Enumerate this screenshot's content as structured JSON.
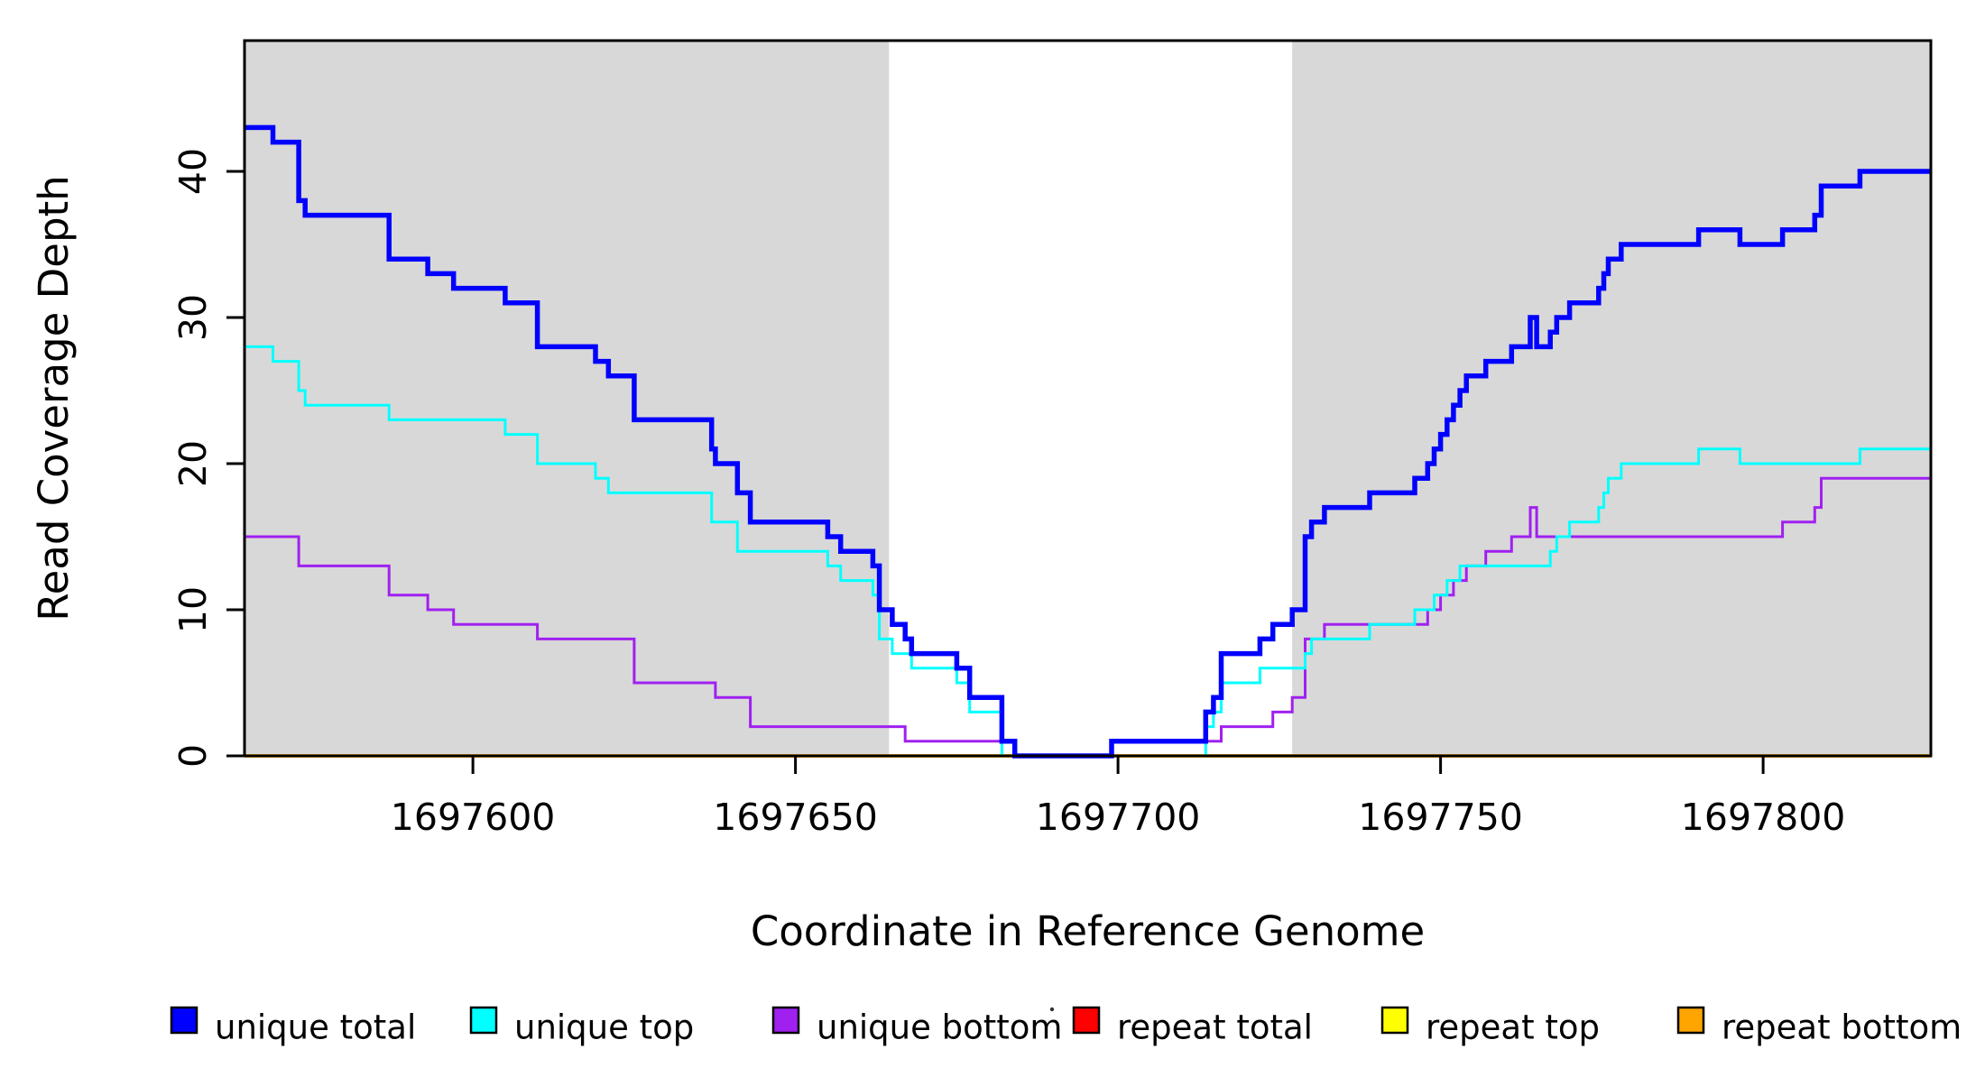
{
  "chart_data": {
    "type": "line",
    "subtype": "step",
    "title": "",
    "xlabel": "Coordinate in Reference Genome",
    "ylabel": "Read Coverage Depth",
    "xlim": [
      1697564.6,
      1697826.0
    ],
    "ylim": [
      0,
      48.9
    ],
    "x_ticks": [
      1697600,
      1697650,
      1697700,
      1697750,
      1697800
    ],
    "y_ticks": [
      0,
      10,
      20,
      30,
      40
    ],
    "grid": false,
    "legend_position": "bottom",
    "plot_bg": "#ffffff",
    "shaded_regions": [
      {
        "name": "unique-region-left",
        "x0": 1697564.6,
        "x1": 1697664.5,
        "color": "#d8d8d8"
      },
      {
        "name": "unique-region-right",
        "x0": 1697727.0,
        "x1": 1697826.0,
        "color": "#d8d8d8"
      }
    ],
    "series": [
      {
        "name": "repeat total",
        "color": "#FF0000",
        "points": [
          [
            1697564.6,
            0
          ]
        ]
      },
      {
        "name": "repeat top",
        "color": "#FFFF00",
        "points": [
          [
            1697564.6,
            0
          ]
        ]
      },
      {
        "name": "repeat bottom",
        "color": "#FFA500",
        "points": [
          [
            1697564.6,
            0
          ]
        ]
      },
      {
        "name": "unique bottom",
        "color": "#A020F0",
        "points": [
          [
            1697564.6,
            15
          ],
          [
            1697573,
            13
          ],
          [
            1697587,
            11
          ],
          [
            1697593,
            10
          ],
          [
            1697597,
            9
          ],
          [
            1697610,
            8
          ],
          [
            1697625,
            5
          ],
          [
            1697637.6,
            4
          ],
          [
            1697643,
            2
          ],
          [
            1697667,
            1
          ],
          [
            1697684,
            0
          ],
          [
            1697699,
            1
          ],
          [
            1697716,
            2
          ],
          [
            1697724,
            3
          ],
          [
            1697727,
            4
          ],
          [
            1697729,
            8
          ],
          [
            1697732,
            9
          ],
          [
            1697748,
            10
          ],
          [
            1697750,
            11
          ],
          [
            1697752,
            12
          ],
          [
            1697754,
            13
          ],
          [
            1697757,
            14
          ],
          [
            1697761,
            15
          ],
          [
            1697763.9,
            17
          ],
          [
            1697764.9,
            15
          ],
          [
            1697803,
            16
          ],
          [
            1697808,
            17
          ],
          [
            1697809,
            19
          ]
        ]
      },
      {
        "name": "unique top",
        "color": "#00FFFF",
        "points": [
          [
            1697564.6,
            28
          ],
          [
            1697569,
            27
          ],
          [
            1697573,
            25
          ],
          [
            1697574,
            24
          ],
          [
            1697587,
            23
          ],
          [
            1697605,
            22
          ],
          [
            1697610,
            20
          ],
          [
            1697619,
            19
          ],
          [
            1697621,
            18
          ],
          [
            1697637,
            16
          ],
          [
            1697641,
            14
          ],
          [
            1697655,
            13
          ],
          [
            1697657,
            12
          ],
          [
            1697662,
            11
          ],
          [
            1697663,
            8
          ],
          [
            1697665,
            7
          ],
          [
            1697668,
            6
          ],
          [
            1697675,
            5
          ],
          [
            1697677,
            3
          ],
          [
            1697682,
            0
          ],
          [
            1697713.6,
            2
          ],
          [
            1697714.8,
            3
          ],
          [
            1697716,
            5
          ],
          [
            1697722,
            6
          ],
          [
            1697729,
            7
          ],
          [
            1697730,
            8
          ],
          [
            1697739,
            9
          ],
          [
            1697746,
            10
          ],
          [
            1697749,
            11
          ],
          [
            1697751,
            12
          ],
          [
            1697753,
            13
          ],
          [
            1697767,
            14
          ],
          [
            1697768,
            15
          ],
          [
            1697770,
            16
          ],
          [
            1697774.5,
            17
          ],
          [
            1697775.3,
            18
          ],
          [
            1697776,
            19
          ],
          [
            1697778,
            20
          ],
          [
            1697790,
            21
          ],
          [
            1697796.4,
            20
          ],
          [
            1697815,
            21
          ]
        ]
      },
      {
        "name": "unique total",
        "color": "#0000FF",
        "points": [
          [
            1697564.6,
            43
          ],
          [
            1697569,
            42
          ],
          [
            1697573,
            38
          ],
          [
            1697574,
            37
          ],
          [
            1697587,
            34
          ],
          [
            1697593,
            33
          ],
          [
            1697597,
            32
          ],
          [
            1697605,
            31
          ],
          [
            1697610,
            28
          ],
          [
            1697619,
            27
          ],
          [
            1697621,
            26
          ],
          [
            1697625,
            23
          ],
          [
            1697637,
            21
          ],
          [
            1697637.6,
            20
          ],
          [
            1697641,
            18
          ],
          [
            1697643,
            16
          ],
          [
            1697655,
            15
          ],
          [
            1697657,
            14
          ],
          [
            1697662,
            13
          ],
          [
            1697663,
            10
          ],
          [
            1697665,
            9
          ],
          [
            1697667,
            8
          ],
          [
            1697668,
            7
          ],
          [
            1697675,
            6
          ],
          [
            1697677,
            4
          ],
          [
            1697682,
            1
          ],
          [
            1697684,
            0
          ],
          [
            1697699,
            1
          ],
          [
            1697713.6,
            3
          ],
          [
            1697714.8,
            4
          ],
          [
            1697716,
            7
          ],
          [
            1697722,
            8
          ],
          [
            1697724,
            9
          ],
          [
            1697727,
            10
          ],
          [
            1697729,
            15
          ],
          [
            1697730,
            16
          ],
          [
            1697732,
            17
          ],
          [
            1697739,
            18
          ],
          [
            1697746,
            19
          ],
          [
            1697748,
            20
          ],
          [
            1697749,
            21
          ],
          [
            1697750,
            22
          ],
          [
            1697751,
            23
          ],
          [
            1697752,
            24
          ],
          [
            1697753,
            25
          ],
          [
            1697754,
            26
          ],
          [
            1697757,
            27
          ],
          [
            1697761,
            28
          ],
          [
            1697763.9,
            30
          ],
          [
            1697764.9,
            28
          ],
          [
            1697767,
            29
          ],
          [
            1697768,
            30
          ],
          [
            1697770,
            31
          ],
          [
            1697774.5,
            32
          ],
          [
            1697775.3,
            33
          ],
          [
            1697776,
            34
          ],
          [
            1697778,
            35
          ],
          [
            1697790,
            36
          ],
          [
            1697796.4,
            35
          ],
          [
            1697803,
            36
          ],
          [
            1697808,
            37
          ],
          [
            1697809,
            39
          ],
          [
            1697815,
            40
          ]
        ]
      }
    ],
    "legend": [
      {
        "label": "unique total",
        "color": "#0000FF"
      },
      {
        "label": "unique top",
        "color": "#00FFFF"
      },
      {
        "label": "unique bottom",
        "color": "#A020F0"
      },
      {
        "label": "repeat total",
        "color": "#FF0000"
      },
      {
        "label": "repeat top",
        "color": "#FFFF00"
      },
      {
        "label": "repeat bottom",
        "color": "#FFA500"
      }
    ]
  },
  "layout_note": "stray plotting artifact dot rendered near legend",
  "axis_color": "#000000"
}
